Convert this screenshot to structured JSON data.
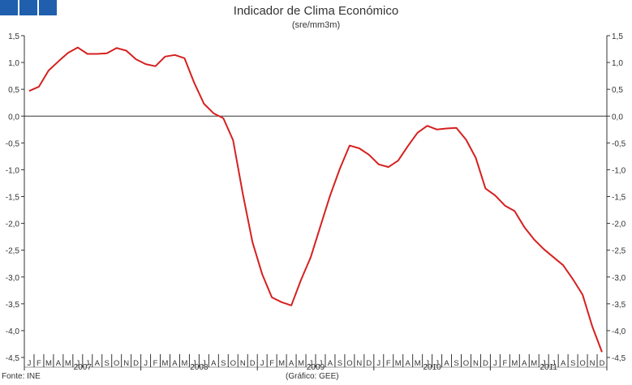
{
  "header": {
    "title": "Indicador de Clima Económico",
    "subtitle": "(sre/mm3m)"
  },
  "footer": {
    "source": "Fonte: INE",
    "credit": "(Gráfico: GEE)"
  },
  "colors": {
    "line": "#d62020",
    "axis": "#333333",
    "logo": "#1f5fae"
  },
  "chart_data": {
    "type": "line",
    "title": "Indicador de Clima Económico",
    "subtitle": "(sre/mm3m)",
    "xlabel": "",
    "ylabel": "",
    "ylim": [
      -4.5,
      1.5
    ],
    "yticks": [
      1.5,
      1.0,
      0.5,
      0.0,
      -0.5,
      -1.0,
      -1.5,
      -2.0,
      -2.5,
      -3.0,
      -3.5,
      -4.0,
      -4.5
    ],
    "ytick_labels": [
      "1,5",
      "1,0",
      "0,5",
      "0,0",
      "-0,5",
      "-1,0",
      "-1,5",
      "-2,0",
      "-2,5",
      "-3,0",
      "-3,5",
      "-4,0",
      "-4,5"
    ],
    "month_labels": [
      "J",
      "F",
      "M",
      "A",
      "M",
      "J",
      "J",
      "A",
      "S",
      "O",
      "N",
      "D"
    ],
    "years": [
      "2007",
      "2008",
      "2009",
      "2010",
      "2011"
    ],
    "grid": false,
    "right_axis": true,
    "series": [
      {
        "values": [
          0.47,
          0.55,
          0.85,
          1.02,
          1.18,
          1.28,
          1.16,
          1.16,
          1.17,
          1.27,
          1.22,
          1.06,
          0.97,
          0.93,
          1.11,
          1.14,
          1.08,
          0.62,
          0.23,
          0.05,
          -0.04,
          -0.45,
          -1.45,
          -2.35,
          -2.95,
          -3.38,
          -3.47,
          -3.53,
          -3.05,
          -2.63,
          -2.05,
          -1.48,
          -0.98,
          -0.55,
          -0.6,
          -0.72,
          -0.9,
          -0.95,
          -0.83,
          -0.56,
          -0.31,
          -0.18,
          -0.25,
          -0.23,
          -0.22,
          -0.44,
          -0.78,
          -1.35,
          -1.48,
          -1.67,
          -1.77,
          -2.07,
          -2.3,
          -2.48,
          -2.63,
          -2.78,
          -3.04,
          -3.33,
          -3.92,
          -4.4
        ]
      }
    ]
  }
}
